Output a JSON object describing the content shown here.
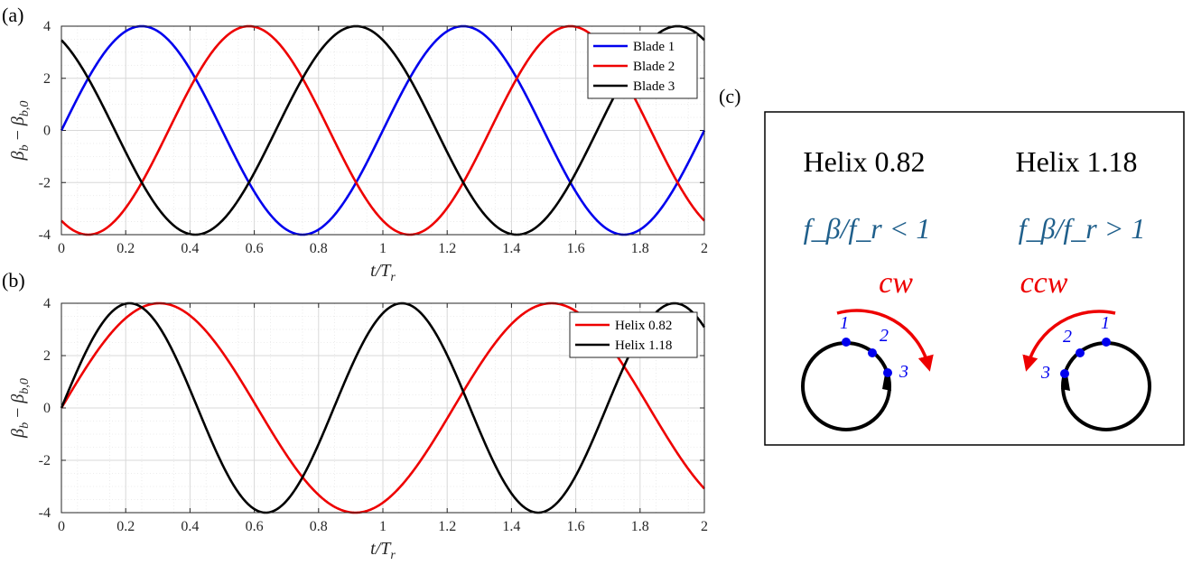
{
  "panel_labels": {
    "a": "(a)",
    "b": "(b)",
    "c": "(c)"
  },
  "chart_data": [
    {
      "type": "line",
      "panel": "(a)",
      "xlabel": "t/T_r",
      "ylabel": "β_b − β_b,0",
      "xlim": [
        0,
        2
      ],
      "ylim": [
        -4,
        4
      ],
      "xticks": [
        "0",
        "0.2",
        "0.4",
        "0.6",
        "0.8",
        "1",
        "1.2",
        "1.4",
        "1.6",
        "1.8",
        "2"
      ],
      "yticks": [
        "-4",
        "-2",
        "0",
        "2",
        "4"
      ],
      "grid": true,
      "legend_position": "top-right",
      "series": [
        {
          "name": "Blade 1",
          "color": "#0000ee",
          "amplitude": 4,
          "frequency": 1,
          "phase_deg": 0
        },
        {
          "name": "Blade 2",
          "color": "#ee0000",
          "amplitude": 4,
          "frequency": 1,
          "phase_deg": 240
        },
        {
          "name": "Blade 3",
          "color": "#000000",
          "amplitude": 4,
          "frequency": 1,
          "phase_deg": 120
        }
      ]
    },
    {
      "type": "line",
      "panel": "(b)",
      "xlabel": "t/T_r",
      "ylabel": "β_b − β_b,0",
      "xlim": [
        0,
        2
      ],
      "ylim": [
        -4,
        4
      ],
      "xticks": [
        "0",
        "0.2",
        "0.4",
        "0.6",
        "0.8",
        "1",
        "1.2",
        "1.4",
        "1.6",
        "1.8",
        "2"
      ],
      "yticks": [
        "-4",
        "-2",
        "0",
        "2",
        "4"
      ],
      "grid": true,
      "legend_position": "top-right",
      "series": [
        {
          "name": "Helix 0.82",
          "color": "#ee0000",
          "amplitude": 4,
          "frequency": 0.82,
          "phase_deg": 0
        },
        {
          "name": "Helix 1.18",
          "color": "#000000",
          "amplitude": 4,
          "frequency": 1.18,
          "phase_deg": 0
        }
      ]
    }
  ],
  "diagram": {
    "left": {
      "title": "Helix 0.82",
      "ratio_text": "f_β/f_r < 1",
      "rotation_label": "cw",
      "blade_labels": [
        "1",
        "2",
        "3"
      ]
    },
    "right": {
      "title": "Helix 1.18",
      "ratio_text": "f_β/f_r > 1",
      "rotation_label": "ccw",
      "blade_labels": [
        "1",
        "2",
        "3"
      ]
    }
  }
}
